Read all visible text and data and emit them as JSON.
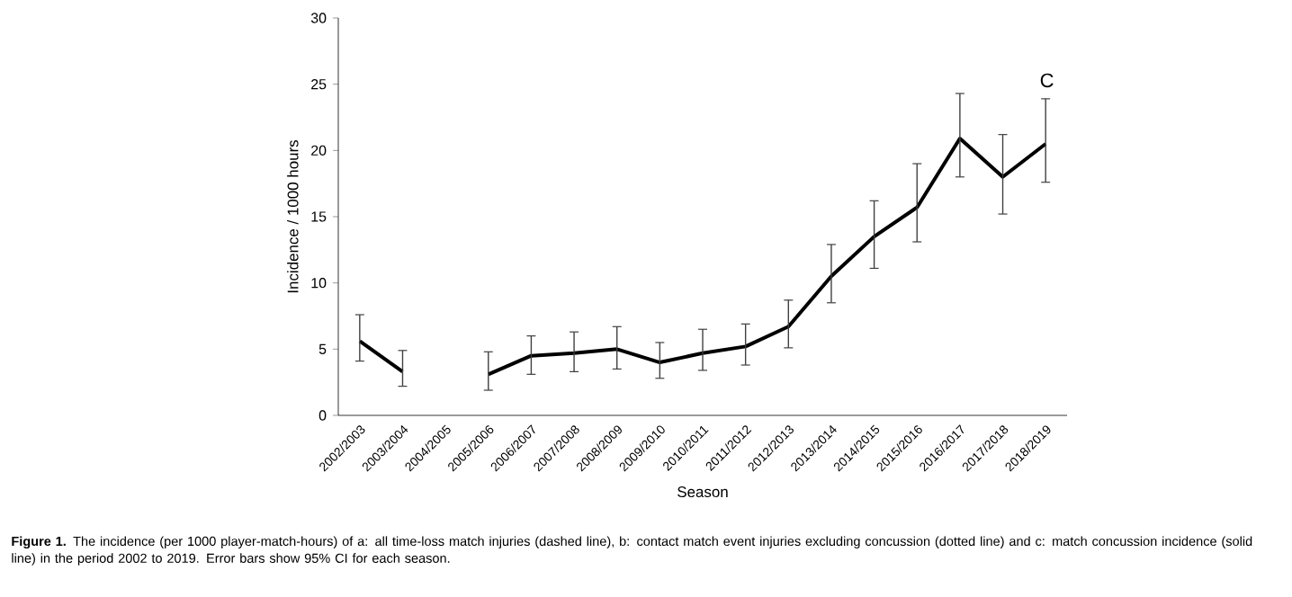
{
  "chart_data": {
    "type": "line",
    "xlabel": "Season",
    "ylabel": "Incidence / 1000 hours",
    "categories": [
      "2002/2003",
      "2003/2004",
      "2004/2005",
      "2005/2006",
      "2006/2007",
      "2007/2008",
      "2008/2009",
      "2009/2010",
      "2010/2011",
      "2011/2012",
      "2012/2013",
      "2013/2014",
      "2014/2015",
      "2015/2016",
      "2016/2017",
      "2017/2018",
      "2018/2019"
    ],
    "series": [
      {
        "color": "#000000",
        "values": [
          5.6,
          3.3,
          null,
          3.1,
          4.5,
          4.7,
          5.0,
          4.0,
          4.7,
          5.2,
          6.7,
          10.5,
          13.5,
          15.7,
          20.9,
          18.0,
          20.5
        ],
        "errors": [
          [
            4.1,
            7.6
          ],
          [
            2.2,
            4.9
          ],
          null,
          [
            1.9,
            4.8
          ],
          [
            3.1,
            6.0
          ],
          [
            3.3,
            6.3
          ],
          [
            3.5,
            6.7
          ],
          [
            2.8,
            5.5
          ],
          [
            3.4,
            6.5
          ],
          [
            3.8,
            6.9
          ],
          [
            5.1,
            8.7
          ],
          [
            8.5,
            12.9
          ],
          [
            11.1,
            16.2
          ],
          [
            13.1,
            19.0
          ],
          [
            18.0,
            24.3
          ],
          [
            15.2,
            21.2
          ],
          [
            17.6,
            23.9
          ]
        ]
      }
    ],
    "ylim": [
      0,
      30
    ],
    "yticks": [
      0,
      5,
      10,
      15,
      20,
      25,
      30
    ],
    "marker": "none",
    "line_style": "solid",
    "annotations": [
      "C",
      "**Figure 1.** The incidence (per 1000 player-match-hours) of a: all time-loss match injuries (dashed line), b: contact match event injuries excluding concussion (dotted line) and c: match concussion incidence (solid line) in the period 2002 to 2019. Error bars show 95% CI for each season."
    ]
  }
}
